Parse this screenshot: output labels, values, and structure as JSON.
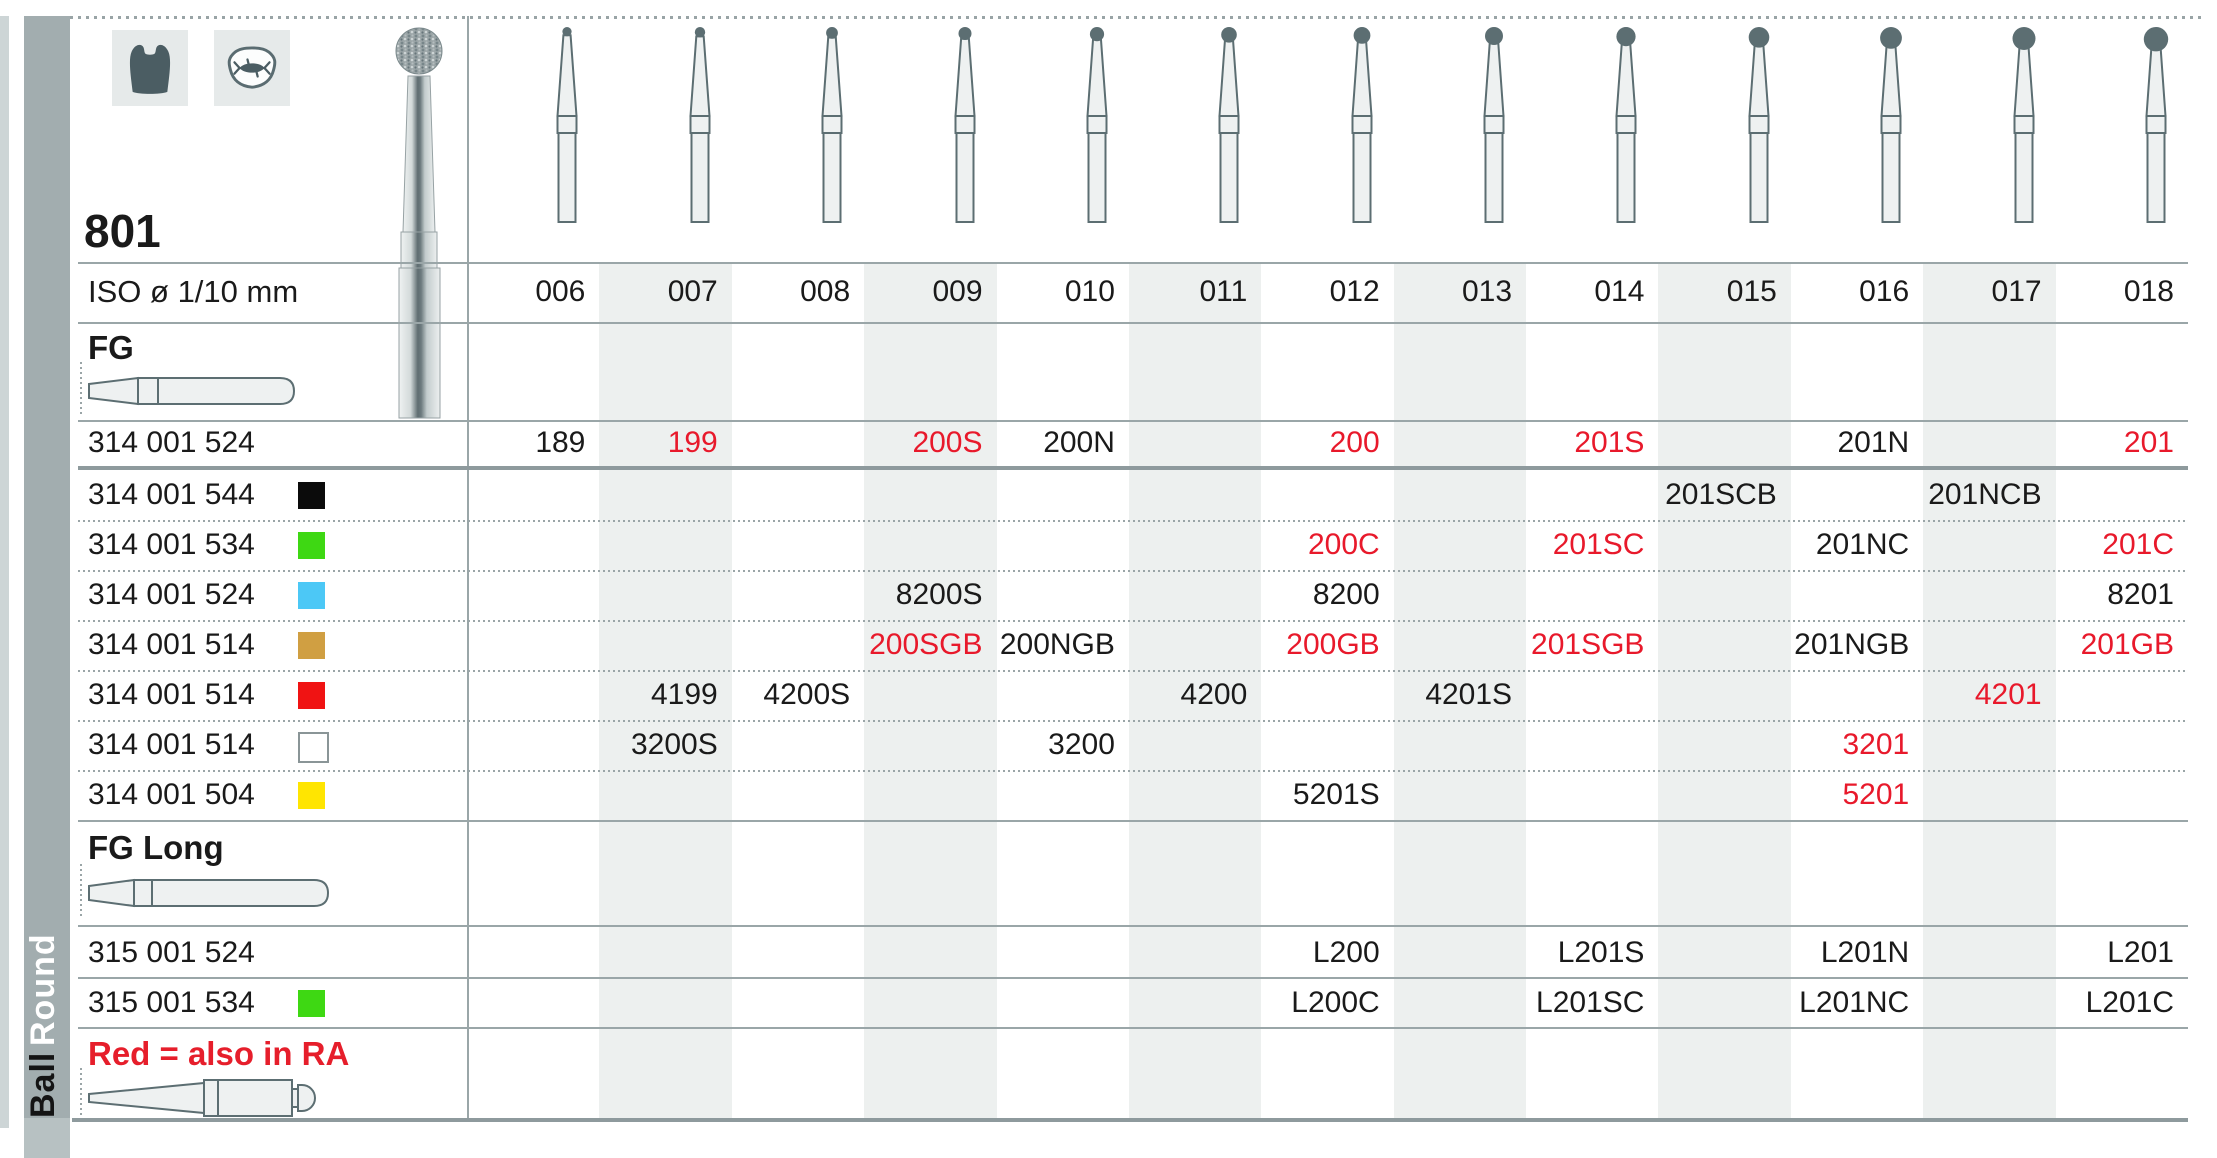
{
  "sidebar": {
    "shape": "Round",
    "group": "Ball"
  },
  "header": {
    "series": "801",
    "iso_label": "ISO ø 1/10 mm",
    "icons": [
      "molar-crown-icon",
      "molar-occlusal-icon"
    ]
  },
  "sections": {
    "fg": "FG",
    "fg_long": "FG Long",
    "note": "Red = also in RA"
  },
  "columns": [
    "006",
    "007",
    "008",
    "009",
    "010",
    "011",
    "012",
    "013",
    "014",
    "015",
    "016",
    "017",
    "018"
  ],
  "shaded_columns": [
    "007",
    "009",
    "011",
    "013",
    "015",
    "017"
  ],
  "ring_colors": {
    "black": "#0b0b0b",
    "green": "#3ed813",
    "blue": "#4cc8f6",
    "gold": "#d09f42",
    "red": "#f01313",
    "white": "#ffffff",
    "yellow": "#ffe501"
  },
  "text_colors": {
    "black": "#1a1a1a",
    "red": "#e8192b"
  },
  "fg_rows": [
    {
      "code": "314 001 524",
      "ring": null,
      "cells": [
        [
          "006",
          "189",
          0
        ],
        [
          "007",
          "199",
          1
        ],
        [
          "009",
          "200S",
          1
        ],
        [
          "010",
          "200N",
          0
        ],
        [
          "012",
          "200",
          1
        ],
        [
          "014",
          "201S",
          1
        ],
        [
          "016",
          "201N",
          0
        ],
        [
          "018",
          "201",
          1
        ]
      ]
    },
    {
      "code": "314 001 544",
      "ring": "black",
      "cells": [
        [
          "015",
          "201SCB",
          0
        ],
        [
          "017",
          "201NCB",
          0
        ]
      ]
    },
    {
      "code": "314 001 534",
      "ring": "green",
      "cells": [
        [
          "012",
          "200C",
          1
        ],
        [
          "014",
          "201SC",
          1
        ],
        [
          "016",
          "201NC",
          0
        ],
        [
          "018",
          "201C",
          1
        ]
      ]
    },
    {
      "code": "314 001 524",
      "ring": "blue",
      "cells": [
        [
          "009",
          "8200S",
          0
        ],
        [
          "012",
          "8200",
          0
        ],
        [
          "018",
          "8201",
          0
        ]
      ]
    },
    {
      "code": "314 001 514",
      "ring": "gold",
      "cells": [
        [
          "009",
          "200SGB",
          1
        ],
        [
          "010",
          "200NGB",
          0
        ],
        [
          "012",
          "200GB",
          1
        ],
        [
          "014",
          "201SGB",
          1
        ],
        [
          "016",
          "201NGB",
          0
        ],
        [
          "018",
          "201GB",
          1
        ]
      ]
    },
    {
      "code": "314 001 514",
      "ring": "red",
      "cells": [
        [
          "007",
          "4199",
          0
        ],
        [
          "008",
          "4200S",
          0
        ],
        [
          "011",
          "4200",
          0
        ],
        [
          "013",
          "4201S",
          0
        ],
        [
          "017",
          "4201",
          1
        ]
      ]
    },
    {
      "code": "314 001 514",
      "ring": "white",
      "cells": [
        [
          "007",
          "3200S",
          0
        ],
        [
          "010",
          "3200",
          0
        ],
        [
          "016",
          "3201",
          1
        ]
      ]
    },
    {
      "code": "314 001 504",
      "ring": "yellow",
      "cells": [
        [
          "012",
          "5201S",
          0
        ],
        [
          "016",
          "5201",
          1
        ]
      ]
    }
  ],
  "fg_long_rows": [
    {
      "code": "315 001 524",
      "ring": null,
      "cells": [
        [
          "012",
          "L200",
          0
        ],
        [
          "014",
          "L201S",
          0
        ],
        [
          "016",
          "L201N",
          0
        ],
        [
          "018",
          "L201",
          0
        ]
      ]
    },
    {
      "code": "315 001 534",
      "ring": "green",
      "cells": [
        [
          "012",
          "L200C",
          0
        ],
        [
          "014",
          "L201SC",
          0
        ],
        [
          "016",
          "L201NC",
          0
        ],
        [
          "018",
          "L201C",
          0
        ]
      ]
    }
  ]
}
